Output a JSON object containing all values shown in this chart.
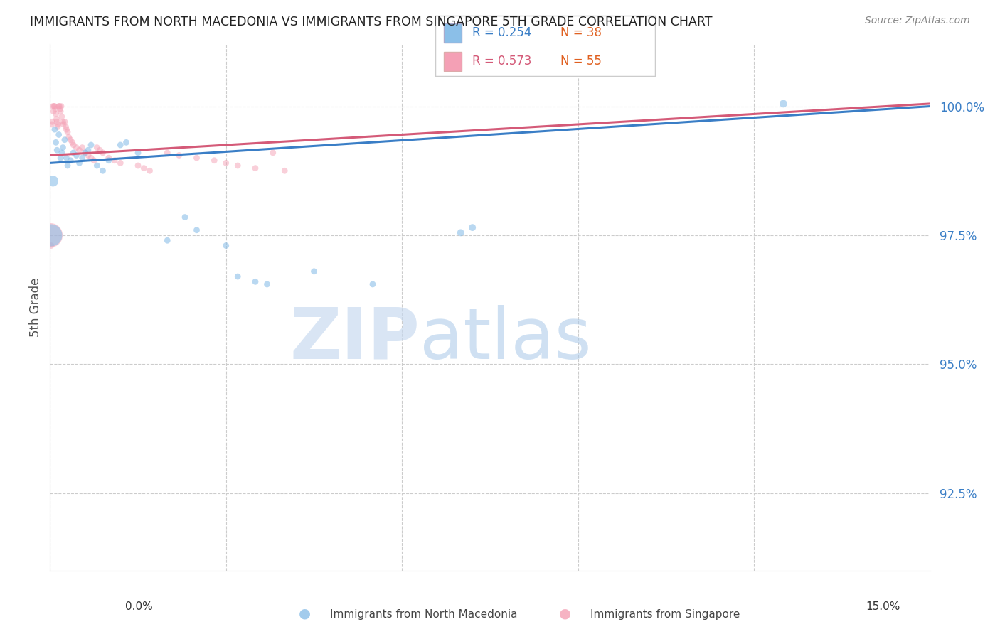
{
  "title": "IMMIGRANTS FROM NORTH MACEDONIA VS IMMIGRANTS FROM SINGAPORE 5TH GRADE CORRELATION CHART",
  "source": "Source: ZipAtlas.com",
  "ylabel": "5th Grade",
  "yticks": [
    92.5,
    95.0,
    97.5,
    100.0
  ],
  "ytick_labels": [
    "92.5%",
    "95.0%",
    "97.5%",
    "100.0%"
  ],
  "xlim": [
    0.0,
    15.0
  ],
  "ylim": [
    91.0,
    101.2
  ],
  "legend_entries": [
    {
      "label_r": "R = 0.254",
      "label_n": "N = 38",
      "color": "#8bbfe8"
    },
    {
      "label_r": "R = 0.573",
      "label_n": "N = 55",
      "color": "#f4a0b5"
    }
  ],
  "watermark_zip": "ZIP",
  "watermark_atlas": "atlas",
  "blue_color": "#8bbfe8",
  "pink_color": "#f4a0b5",
  "blue_line_color": "#3a7ec6",
  "pink_line_color": "#d45a78",
  "blue_line": {
    "x0": 0.0,
    "y0": 98.9,
    "x1": 15.0,
    "y1": 100.0
  },
  "pink_line": {
    "x0": 0.0,
    "y0": 99.05,
    "x1": 15.0,
    "y1": 100.05
  },
  "north_macedonia_points": [
    [
      0.05,
      98.55
    ],
    [
      0.08,
      99.55
    ],
    [
      0.1,
      99.3
    ],
    [
      0.12,
      99.15
    ],
    [
      0.15,
      99.45
    ],
    [
      0.18,
      99.0
    ],
    [
      0.2,
      99.1
    ],
    [
      0.22,
      99.2
    ],
    [
      0.25,
      99.35
    ],
    [
      0.28,
      99.0
    ],
    [
      0.3,
      98.85
    ],
    [
      0.35,
      98.95
    ],
    [
      0.4,
      99.1
    ],
    [
      0.45,
      99.05
    ],
    [
      0.5,
      98.9
    ],
    [
      0.55,
      99.0
    ],
    [
      0.6,
      99.1
    ],
    [
      0.65,
      99.15
    ],
    [
      0.7,
      99.25
    ],
    [
      0.8,
      98.85
    ],
    [
      0.9,
      98.75
    ],
    [
      1.0,
      98.95
    ],
    [
      1.2,
      99.25
    ],
    [
      1.3,
      99.3
    ],
    [
      1.5,
      99.1
    ],
    [
      2.0,
      97.4
    ],
    [
      2.3,
      97.85
    ],
    [
      2.5,
      97.6
    ],
    [
      3.0,
      97.3
    ],
    [
      3.2,
      96.7
    ],
    [
      3.5,
      96.6
    ],
    [
      3.7,
      96.55
    ],
    [
      4.5,
      96.8
    ],
    [
      5.5,
      96.55
    ],
    [
      7.0,
      97.55
    ],
    [
      7.2,
      97.65
    ],
    [
      12.5,
      100.05
    ],
    [
      0.02,
      97.5
    ]
  ],
  "singapore_points": [
    [
      0.02,
      97.3
    ],
    [
      0.03,
      99.65
    ],
    [
      0.04,
      99.7
    ],
    [
      0.05,
      100.0
    ],
    [
      0.06,
      99.9
    ],
    [
      0.07,
      100.0
    ],
    [
      0.08,
      100.0
    ],
    [
      0.09,
      99.95
    ],
    [
      0.1,
      99.85
    ],
    [
      0.11,
      99.75
    ],
    [
      0.12,
      99.7
    ],
    [
      0.13,
      99.6
    ],
    [
      0.14,
      99.65
    ],
    [
      0.15,
      100.0
    ],
    [
      0.16,
      100.0
    ],
    [
      0.17,
      99.95
    ],
    [
      0.18,
      99.9
    ],
    [
      0.19,
      100.0
    ],
    [
      0.2,
      99.8
    ],
    [
      0.22,
      99.7
    ],
    [
      0.23,
      99.65
    ],
    [
      0.25,
      99.7
    ],
    [
      0.27,
      99.6
    ],
    [
      0.28,
      99.55
    ],
    [
      0.3,
      99.5
    ],
    [
      0.32,
      99.4
    ],
    [
      0.35,
      99.35
    ],
    [
      0.38,
      99.3
    ],
    [
      0.4,
      99.25
    ],
    [
      0.45,
      99.2
    ],
    [
      0.5,
      99.15
    ],
    [
      0.55,
      99.2
    ],
    [
      0.6,
      99.1
    ],
    [
      0.65,
      99.05
    ],
    [
      0.7,
      99.0
    ],
    [
      0.75,
      98.95
    ],
    [
      0.8,
      99.2
    ],
    [
      0.85,
      99.15
    ],
    [
      0.9,
      99.1
    ],
    [
      1.0,
      99.0
    ],
    [
      1.1,
      98.95
    ],
    [
      1.2,
      98.9
    ],
    [
      1.5,
      98.85
    ],
    [
      1.6,
      98.8
    ],
    [
      1.7,
      98.75
    ],
    [
      2.0,
      99.1
    ],
    [
      2.2,
      99.05
    ],
    [
      2.5,
      99.0
    ],
    [
      2.8,
      98.95
    ],
    [
      3.0,
      98.9
    ],
    [
      3.2,
      98.85
    ],
    [
      3.5,
      98.8
    ],
    [
      3.8,
      99.1
    ],
    [
      4.0,
      98.75
    ],
    [
      0.01,
      97.5
    ]
  ],
  "north_macedonia_sizes": [
    120,
    40,
    40,
    40,
    40,
    40,
    40,
    40,
    40,
    40,
    40,
    40,
    40,
    40,
    40,
    40,
    40,
    40,
    40,
    40,
    40,
    40,
    40,
    40,
    40,
    40,
    40,
    40,
    40,
    40,
    40,
    40,
    40,
    40,
    50,
    50,
    60,
    500
  ],
  "singapore_sizes": [
    40,
    40,
    40,
    40,
    40,
    40,
    40,
    40,
    40,
    40,
    40,
    40,
    40,
    40,
    40,
    40,
    40,
    40,
    40,
    40,
    40,
    40,
    40,
    40,
    40,
    40,
    40,
    40,
    40,
    40,
    40,
    40,
    40,
    40,
    40,
    40,
    40,
    40,
    40,
    40,
    40,
    40,
    40,
    40,
    40,
    40,
    40,
    40,
    40,
    40,
    40,
    40,
    40,
    40,
    600
  ]
}
